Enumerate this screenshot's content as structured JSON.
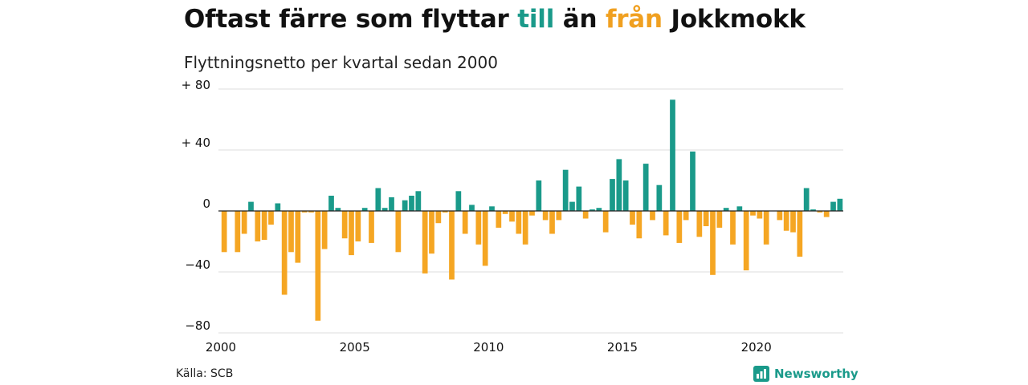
{
  "title": {
    "part1": "Oftast färre som flyttar ",
    "till": "till",
    "part2": " än ",
    "fran": "från",
    "part3": " Jokkmokk"
  },
  "subtitle": "Flyttningsnetto per kvartal sedan 2000",
  "source": "Källa: SCB",
  "brand": "Newsworthy",
  "colors": {
    "positive": "#1a9a8a",
    "negative": "#f5a623",
    "grid": "#dddddd",
    "zero": "#222222"
  },
  "chart_data": {
    "type": "bar",
    "title": "Oftast färre som flyttar till än från Jokkmokk",
    "subtitle": "Flyttningsnetto per kvartal sedan 2000",
    "xlabel": "",
    "ylabel": "",
    "ylim": [
      -80,
      80
    ],
    "yticks": [
      {
        "value": 80,
        "label": "+ 80"
      },
      {
        "value": 40,
        "label": "+ 40"
      },
      {
        "value": 0,
        "label": "0"
      },
      {
        "value": -40,
        "label": "−40"
      },
      {
        "value": -80,
        "label": "−80"
      }
    ],
    "xticks": [
      "2000",
      "2005",
      "2010",
      "2015",
      "2020"
    ],
    "start_year": 2000,
    "periods_per_year": 4,
    "grid": true,
    "values": [
      -27,
      0,
      -27,
      -15,
      6,
      -20,
      -19,
      -9,
      5,
      -55,
      -27,
      -34,
      -1,
      -1,
      -72,
      -25,
      10,
      2,
      -18,
      -29,
      -20,
      2,
      -21,
      15,
      2,
      9,
      -27,
      7,
      10,
      13,
      -41,
      -28,
      -8,
      -1,
      -45,
      13,
      -15,
      4,
      -22,
      -36,
      3,
      -11,
      -2,
      -7,
      -15,
      -22,
      -3,
      20,
      -6,
      -15,
      -6,
      27,
      6,
      16,
      -5,
      1,
      2,
      -14,
      21,
      34,
      20,
      -9,
      -18,
      31,
      -6,
      17,
      -16,
      73,
      -21,
      -6,
      39,
      -17,
      -10,
      -42,
      -11,
      2,
      -22,
      3,
      -39,
      -3,
      -5,
      -22,
      0,
      -6,
      -13,
      -14,
      -30,
      15,
      1,
      -1,
      -4,
      6,
      8
    ]
  }
}
